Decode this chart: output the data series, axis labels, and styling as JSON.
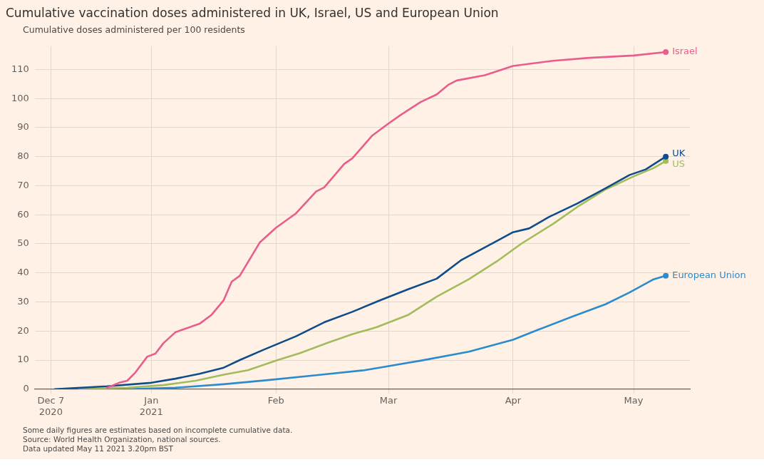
{
  "chart_data": {
    "type": "line",
    "title": "Cumulative vaccination doses administered in UK, Israel, US and European Union",
    "subtitle": "Cumulative doses administered per 100 residents",
    "annotations": [
      "Some daily figures are estimates based on incomplete cumulative data.",
      "Source: World Health Organization, national sources.",
      "Data updated May 11 2021 3.20pm BST"
    ],
    "xlim": [
      "2020-12-03",
      "2021-05-15"
    ],
    "xticks": [
      {
        "value": "2020-12-07",
        "label": "Dec 7\n2020"
      },
      {
        "value": "2021-01-01",
        "label": "Jan\n2021"
      },
      {
        "value": "2021-02-01",
        "label": "Feb"
      },
      {
        "value": "2021-03-01",
        "label": "Mar"
      },
      {
        "value": "2021-04-01",
        "label": "Apr"
      },
      {
        "value": "2021-05-01",
        "label": "May"
      }
    ],
    "ylim": [
      0,
      118
    ],
    "yticks": [
      0,
      10,
      20,
      30,
      40,
      50,
      60,
      70,
      80,
      90,
      100,
      110
    ],
    "grid": true,
    "marker": "none",
    "line_style": "solid",
    "series": [
      {
        "name": "Israel",
        "color": "#e95d8c",
        "x": [
          "2020-12-21",
          "2020-12-24",
          "2020-12-26",
          "2020-12-28",
          "2020-12-31",
          "2021-01-02",
          "2021-01-04",
          "2021-01-07",
          "2021-01-13",
          "2021-01-16",
          "2021-01-19",
          "2021-01-21",
          "2021-01-23",
          "2021-01-28",
          "2021-02-01",
          "2021-02-06",
          "2021-02-11",
          "2021-02-13",
          "2021-02-18",
          "2021-02-20",
          "2021-02-25",
          "2021-03-01",
          "2021-03-04",
          "2021-03-09",
          "2021-03-13",
          "2021-03-16",
          "2021-03-18",
          "2021-03-25",
          "2021-04-01",
          "2021-04-11",
          "2021-04-20",
          "2021-05-01",
          "2021-05-09"
        ],
        "values": [
          0.5,
          2.2,
          2.9,
          5.7,
          11.2,
          12.2,
          15.8,
          19.6,
          22.5,
          25.6,
          30.6,
          37,
          39,
          50.5,
          55.5,
          60.5,
          68,
          69.4,
          77.5,
          79.4,
          87.3,
          91.4,
          94.3,
          98.8,
          101.4,
          104.8,
          106.2,
          108,
          111.2,
          113,
          114,
          114.8,
          116
        ]
      },
      {
        "name": "UK",
        "color": "#0f4c8a",
        "x": [
          "2020-12-08",
          "2020-12-21",
          "2021-01-01",
          "2021-01-07",
          "2021-01-13",
          "2021-01-19",
          "2021-01-23",
          "2021-01-29",
          "2021-02-06",
          "2021-02-13",
          "2021-02-20",
          "2021-02-27",
          "2021-03-06",
          "2021-03-13",
          "2021-03-19",
          "2021-03-28",
          "2021-04-01",
          "2021-04-05",
          "2021-04-10",
          "2021-04-17",
          "2021-04-24",
          "2021-04-30",
          "2021-05-04",
          "2021-05-09"
        ],
        "values": [
          0,
          1,
          2.2,
          3.6,
          5.3,
          7.4,
          10,
          13.6,
          18.2,
          23,
          26.6,
          30.6,
          34.4,
          38,
          44.3,
          51,
          54,
          55.3,
          59.3,
          63.9,
          69.1,
          73.7,
          75.6,
          80
        ]
      },
      {
        "name": "US",
        "color": "#a2bc5c",
        "x": [
          "2020-12-14",
          "2020-12-26",
          "2021-01-04",
          "2021-01-12",
          "2021-01-19",
          "2021-01-25",
          "2021-02-01",
          "2021-02-07",
          "2021-02-14",
          "2021-02-20",
          "2021-02-26",
          "2021-03-06",
          "2021-03-13",
          "2021-03-21",
          "2021-03-28",
          "2021-04-03",
          "2021-04-11",
          "2021-04-17",
          "2021-04-24",
          "2021-05-01",
          "2021-05-06",
          "2021-05-09"
        ],
        "values": [
          0,
          0.5,
          1.4,
          2.9,
          5,
          6.5,
          9.8,
          12.4,
          16,
          18.9,
          21.3,
          25.6,
          31.8,
          37.8,
          44,
          50,
          56.9,
          62.7,
          68.7,
          73.2,
          76.1,
          78.5
        ]
      },
      {
        "name": "European Union",
        "color": "#2a8ccc",
        "x": [
          "2020-12-26",
          "2021-01-07",
          "2021-01-19",
          "2021-01-30",
          "2021-02-11",
          "2021-02-23",
          "2021-02-28",
          "2021-03-09",
          "2021-03-21",
          "2021-04-01",
          "2021-04-07",
          "2021-04-16",
          "2021-04-24",
          "2021-04-30",
          "2021-05-06",
          "2021-05-09"
        ],
        "values": [
          0,
          0.5,
          1.7,
          3.1,
          4.8,
          6.5,
          7.7,
          9.8,
          12.9,
          17,
          20.3,
          25.1,
          29.2,
          33.3,
          37.8,
          39
        ]
      }
    ]
  }
}
